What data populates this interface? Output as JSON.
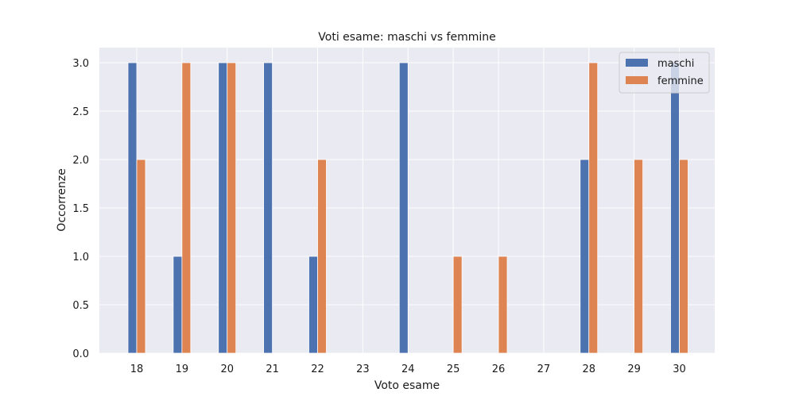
{
  "chart_data": {
    "type": "bar",
    "title": "Voti esame: maschi vs femmine",
    "xlabel": "Voto esame",
    "ylabel": "Occorrenze",
    "categories": [
      "18",
      "19",
      "20",
      "21",
      "22",
      "23",
      "24",
      "25",
      "26",
      "27",
      "28",
      "29",
      "30"
    ],
    "series": [
      {
        "name": "maschi",
        "color": "#4c72b0",
        "values": [
          3,
          1,
          3,
          3,
          1,
          0,
          3,
          0,
          0,
          0,
          2,
          0,
          3
        ]
      },
      {
        "name": "femmine",
        "color": "#dd8452",
        "values": [
          2,
          3,
          3,
          0,
          2,
          0,
          0,
          1,
          1,
          0,
          3,
          2,
          2
        ]
      }
    ],
    "ylim": [
      0,
      3.0
    ],
    "yticks": [
      "0.0",
      "0.5",
      "1.0",
      "1.5",
      "2.0",
      "2.5",
      "3.0"
    ],
    "grid": true,
    "legend_position": "top-right",
    "background": "#eaeaf2"
  }
}
